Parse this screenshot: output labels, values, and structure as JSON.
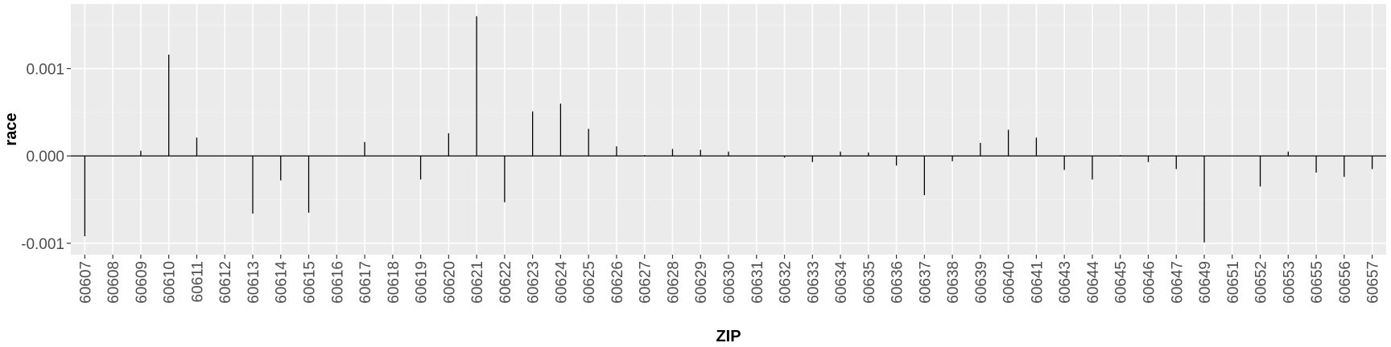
{
  "chart_data": {
    "type": "bar",
    "title": "",
    "xlabel": "ZIP",
    "ylabel": "race",
    "ylim": [
      -0.00113,
      0.00174
    ],
    "yticks": [
      -0.001,
      0.0,
      0.001
    ],
    "ytick_labels": [
      "-0.001",
      "0.000",
      "0.001"
    ],
    "grid": true,
    "legend": "none",
    "colors": {
      "panel": "#ebebeb",
      "grid_major": "#ffffff",
      "grid_minor": "#f2f2f2",
      "bar": "#000000",
      "tick_text": "#4d4d4d"
    },
    "categories": [
      "60607",
      "60608",
      "60609",
      "60610",
      "60611",
      "60612",
      "60613",
      "60614",
      "60615",
      "60616",
      "60617",
      "60618",
      "60619",
      "60620",
      "60621",
      "60622",
      "60623",
      "60624",
      "60625",
      "60626",
      "60627",
      "60628",
      "60629",
      "60630",
      "60631",
      "60632",
      "60633",
      "60634",
      "60635",
      "60636",
      "60637",
      "60638",
      "60639",
      "60640",
      "60641",
      "60643",
      "60644",
      "60645",
      "60646",
      "60647",
      "60649",
      "60651",
      "60652",
      "60653",
      "60655",
      "60656",
      "60657"
    ],
    "values": [
      -0.00092,
      -5e-06,
      6e-05,
      0.00116,
      0.00021,
      5e-06,
      -0.00066,
      -0.00028,
      -0.00065,
      0.0,
      0.00016,
      0.0,
      -0.00027,
      0.00026,
      0.0016,
      -0.00053,
      0.00051,
      0.0006,
      0.00031,
      0.00011,
      1e-05,
      8e-05,
      7e-05,
      5e-05,
      0.0,
      -2e-05,
      -7e-05,
      5e-05,
      4e-05,
      -0.00011,
      -0.00045,
      -6e-05,
      0.00015,
      0.0003,
      0.00021,
      -0.00016,
      -0.00027,
      1e-05,
      -7e-05,
      -0.00015,
      -0.00099,
      0.0,
      -0.00035,
      5e-05,
      -0.00019,
      -0.00024,
      -0.00015
    ]
  }
}
